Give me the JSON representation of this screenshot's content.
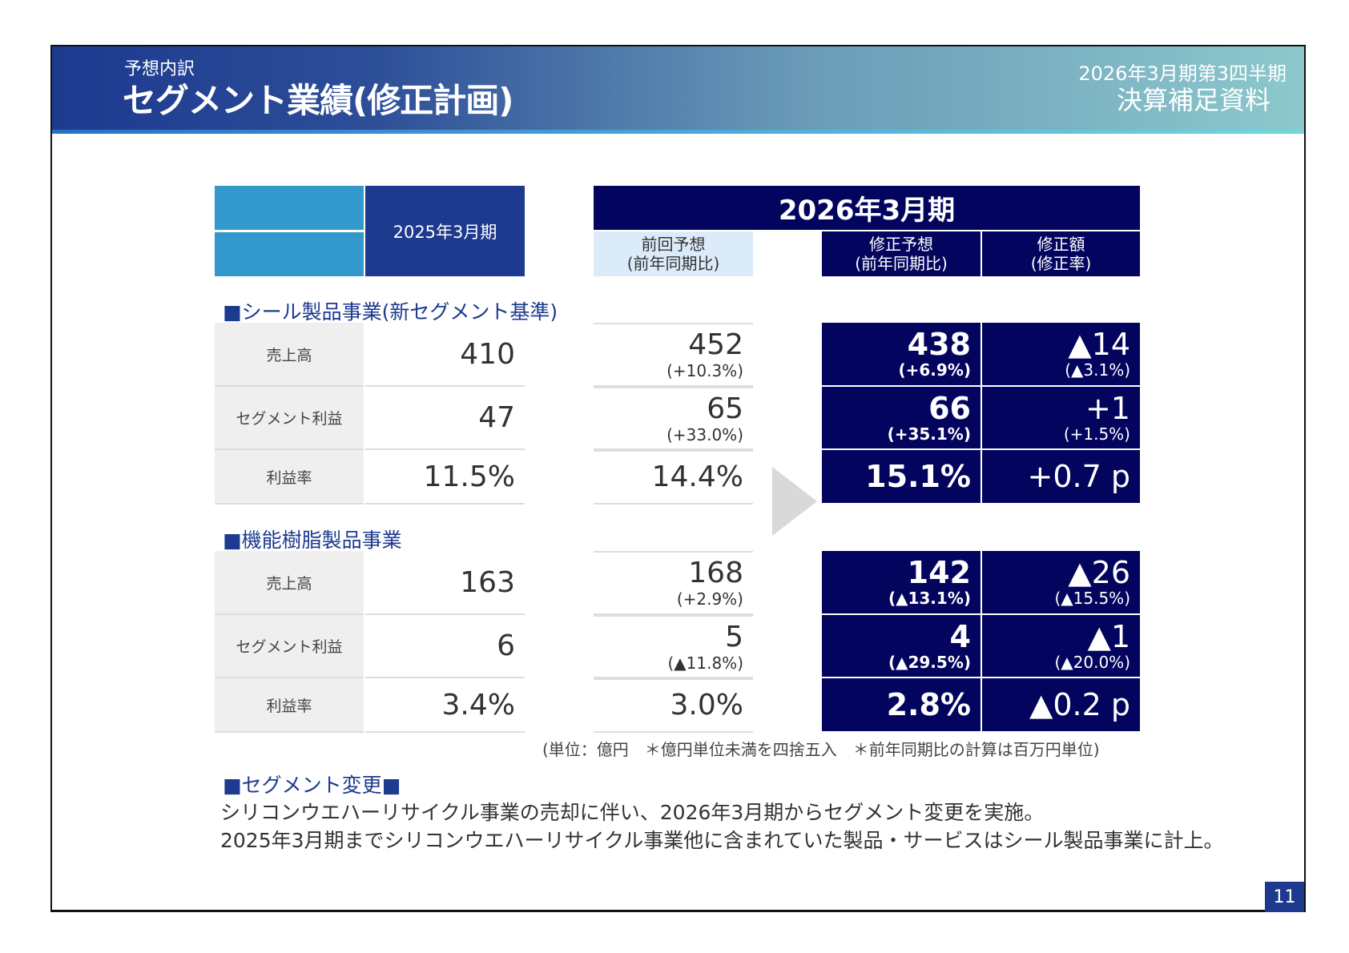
{
  "header": {
    "subtitle": "予想内訳",
    "title": "セグメント業績(修正計画)",
    "doc_period": "2026年3月期第3四半期",
    "doc_name": "決算補足資料"
  },
  "table": {
    "prior_year_header": "2025年3月期",
    "current_year_header": "2026年3月期",
    "col_prev": "前回予想\n(前年同期比)",
    "col_revised": "修正予想\n(前年同期比)",
    "col_diff": "修正額\n(修正率)",
    "segments": [
      {
        "name": "■シール製品事業(新セグメント基準)",
        "rows": [
          {
            "label": "売上高",
            "fy2025": "410",
            "prev": "452",
            "prev_pct": "(+10.3%)",
            "revised": "438",
            "revised_pct": "(+6.9%)",
            "diff": "▲14",
            "diff_pct": "(▲3.1%)"
          },
          {
            "label": "セグメント利益",
            "fy2025": "47",
            "prev": "65",
            "prev_pct": "(+33.0%)",
            "revised": "66",
            "revised_pct": "(+35.1%)",
            "diff": "+1",
            "diff_pct": "(+1.5%)"
          },
          {
            "label": "利益率",
            "fy2025": "11.5%",
            "prev": "14.4%",
            "revised": "15.1%",
            "diff": "+0.7 p"
          }
        ]
      },
      {
        "name": "■機能樹脂製品事業",
        "rows": [
          {
            "label": "売上高",
            "fy2025": "163",
            "prev": "168",
            "prev_pct": "(+2.9%)",
            "revised": "142",
            "revised_pct": "(▲13.1%)",
            "diff": "▲26",
            "diff_pct": "(▲15.5%)"
          },
          {
            "label": "セグメント利益",
            "fy2025": "6",
            "prev": "5",
            "prev_pct": "(▲11.8%)",
            "revised": "4",
            "revised_pct": "(▲29.5%)",
            "diff": "▲1",
            "diff_pct": "(▲20.0%)"
          },
          {
            "label": "利益率",
            "fy2025": "3.4%",
            "prev": "3.0%",
            "revised": "2.8%",
            "diff": "▲0.2 p"
          }
        ]
      }
    ],
    "footnote": "(単位：億円　＊億円単位未満を四捨五入　＊前年同期比の計算は百万円単位)"
  },
  "notes": {
    "heading": "■セグメント変更■",
    "lines": [
      "シリコンウエハーリサイクル事業の売却に伴い、2026年3月期からセグメント変更を実施。",
      "2025年3月期までシリコンウエハーリサイクル事業他に含まれていた製品・サービスはシール製品事業に計上。"
    ]
  },
  "page_number": "11",
  "colors": {
    "navy": "#03045e",
    "blue": "#1d3a8f",
    "light_blue": "#3399cc",
    "pale": "#dcebfa"
  }
}
